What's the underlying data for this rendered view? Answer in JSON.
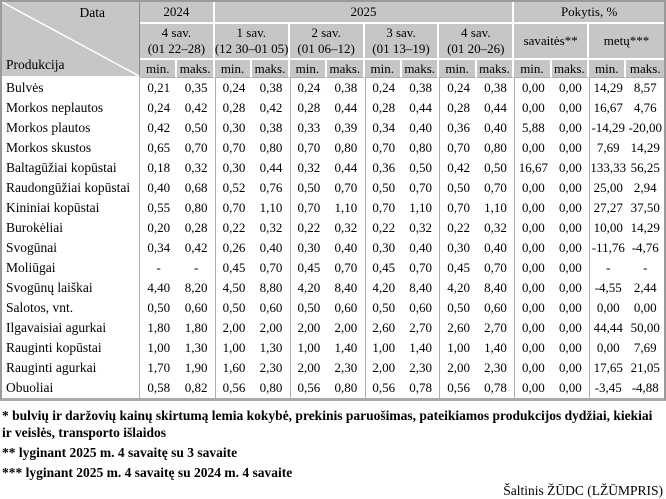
{
  "colors": {
    "header_bg": "#c6c6c6",
    "grid_line": "#aeaeae",
    "header_separator": "#ffffff",
    "frame_border": "#9a9a9a",
    "text": "#000000"
  },
  "table": {
    "corner": {
      "top": "Data",
      "bottom": "Produkcija"
    },
    "group_headers": [
      {
        "label": "2024"
      },
      {
        "label": "2025"
      },
      {
        "label": "Pokytis, %"
      }
    ],
    "period_headers": [
      {
        "line1": "4 sav.",
        "line2": "(01 22–28)"
      },
      {
        "line1": "1 sav.",
        "line2": "(12 30–01 05)"
      },
      {
        "line1": "2 sav.",
        "line2": "(01 06–12)"
      },
      {
        "line1": "3 sav.",
        "line2": "(01 13–19)"
      },
      {
        "line1": "4 sav.",
        "line2": "(01 20–26)"
      },
      {
        "line1": "savaitės**",
        "line2": ""
      },
      {
        "line1": "metų***",
        "line2": ""
      }
    ],
    "stat_labels": {
      "min": "min.",
      "max": "maks."
    },
    "rows": [
      {
        "label": "Bulvės",
        "values": [
          "0,21",
          "0,35",
          "0,24",
          "0,38",
          "0,24",
          "0,38",
          "0,24",
          "0,38",
          "0,24",
          "0,38",
          "0,00",
          "0,00",
          "14,29",
          "8,57"
        ]
      },
      {
        "label": "Morkos neplautos",
        "values": [
          "0,24",
          "0,42",
          "0,28",
          "0,42",
          "0,28",
          "0,44",
          "0,28",
          "0,44",
          "0,28",
          "0,44",
          "0,00",
          "0,00",
          "16,67",
          "4,76"
        ]
      },
      {
        "label": "Morkos plautos",
        "values": [
          "0,42",
          "0,50",
          "0,30",
          "0,38",
          "0,33",
          "0,39",
          "0,34",
          "0,40",
          "0,36",
          "0,40",
          "5,88",
          "0,00",
          "-14,29",
          "-20,00"
        ]
      },
      {
        "label": "Morkos skustos",
        "values": [
          "0,65",
          "0,70",
          "0,70",
          "0,80",
          "0,70",
          "0,80",
          "0,70",
          "0,80",
          "0,70",
          "0,80",
          "0,00",
          "0,00",
          "7,69",
          "14,29"
        ]
      },
      {
        "label": "Baltagūžiai kopūstai",
        "values": [
          "0,18",
          "0,32",
          "0,30",
          "0,44",
          "0,32",
          "0,44",
          "0,36",
          "0,50",
          "0,42",
          "0,50",
          "16,67",
          "0,00",
          "133,33",
          "56,25"
        ]
      },
      {
        "label": "Raudongūžiai kopūstai",
        "values": [
          "0,40",
          "0,68",
          "0,52",
          "0,76",
          "0,50",
          "0,70",
          "0,50",
          "0,70",
          "0,50",
          "0,70",
          "0,00",
          "0,00",
          "25,00",
          "2,94"
        ]
      },
      {
        "label": "Kininiai kopūstai",
        "values": [
          "0,55",
          "0,80",
          "0,70",
          "1,10",
          "0,70",
          "1,10",
          "0,70",
          "1,10",
          "0,70",
          "1,10",
          "0,00",
          "0,00",
          "27,27",
          "37,50"
        ]
      },
      {
        "label": "Burokėliai",
        "values": [
          "0,20",
          "0,28",
          "0,22",
          "0,32",
          "0,22",
          "0,32",
          "0,22",
          "0,32",
          "0,22",
          "0,32",
          "0,00",
          "0,00",
          "10,00",
          "14,29"
        ]
      },
      {
        "label": "Svogūnai",
        "values": [
          "0,34",
          "0,42",
          "0,26",
          "0,40",
          "0,30",
          "0,40",
          "0,30",
          "0,40",
          "0,30",
          "0,40",
          "0,00",
          "0,00",
          "-11,76",
          "-4,76"
        ]
      },
      {
        "label": "Moliūgai",
        "values": [
          "-",
          "-",
          "0,45",
          "0,70",
          "0,45",
          "0,70",
          "0,45",
          "0,70",
          "0,45",
          "0,70",
          "0,00",
          "0,00",
          "-",
          "-"
        ]
      },
      {
        "label": "Svogūnų laiškai",
        "values": [
          "4,40",
          "8,20",
          "4,50",
          "8,80",
          "4,20",
          "8,40",
          "4,20",
          "8,40",
          "4,20",
          "8,40",
          "0,00",
          "0,00",
          "-4,55",
          "2,44"
        ]
      },
      {
        "label": "Salotos, vnt.",
        "values": [
          "0,50",
          "0,60",
          "0,50",
          "0,60",
          "0,50",
          "0,60",
          "0,50",
          "0,60",
          "0,50",
          "0,60",
          "0,00",
          "0,00",
          "0,00",
          "0,00"
        ]
      },
      {
        "label": "Ilgavaisiai agurkai",
        "values": [
          "1,80",
          "1,80",
          "2,00",
          "2,00",
          "2,00",
          "2,00",
          "2,60",
          "2,70",
          "2,60",
          "2,70",
          "0,00",
          "0,00",
          "44,44",
          "50,00"
        ]
      },
      {
        "label": "Rauginti kopūstai",
        "values": [
          "1,00",
          "1,30",
          "1,00",
          "1,30",
          "1,00",
          "1,40",
          "1,00",
          "1,40",
          "1,00",
          "1,40",
          "0,00",
          "0,00",
          "0,00",
          "7,69"
        ]
      },
      {
        "label": "Rauginti agurkai",
        "values": [
          "1,70",
          "1,90",
          "1,60",
          "2,30",
          "2,00",
          "2,30",
          "2,00",
          "2,30",
          "2,00",
          "2,30",
          "0,00",
          "0,00",
          "17,65",
          "21,05"
        ]
      },
      {
        "label": "Obuoliai",
        "values": [
          "0,58",
          "0,82",
          "0,56",
          "0,80",
          "0,56",
          "0,80",
          "0,56",
          "0,78",
          "0,56",
          "0,78",
          "0,00",
          "0,00",
          "-3,45",
          "-4,88"
        ]
      }
    ]
  },
  "footnotes": [
    "* bulvių ir daržovių kainų skirtumą lemia kokybė, prekinis paruošimas, pateikiamos produkcijos dydžiai, kiekiai ir veislės, transporto išlaidos",
    "** lyginant 2025 m. 4 savaitę su 3 savaite",
    "*** lyginant 2025 m. 4 savaitę su 2024 m. 4 savaite"
  ],
  "source": "Šaltinis  ŽŪDC (LŽŪMPRIS)"
}
